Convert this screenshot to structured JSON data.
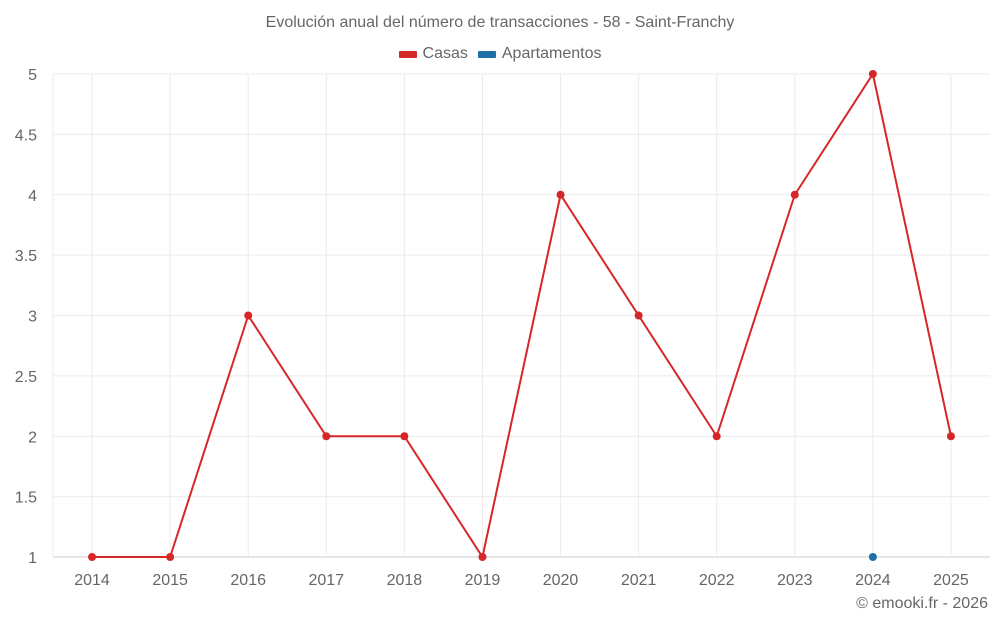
{
  "chart_data": {
    "type": "line",
    "title": "Evolución anual del número de transacciones - 58 - Saint-Franchy",
    "xlabel": "",
    "ylabel": "",
    "categories": [
      "2014",
      "2015",
      "2016",
      "2017",
      "2018",
      "2019",
      "2020",
      "2021",
      "2022",
      "2023",
      "2024",
      "2025"
    ],
    "series": [
      {
        "name": "Casas",
        "color": "#d62728",
        "values": [
          1,
          1,
          3,
          2,
          2,
          1,
          4,
          3,
          2,
          4,
          5,
          2
        ]
      },
      {
        "name": "Apartamentos",
        "color": "#1f6fa8",
        "values": [
          null,
          null,
          null,
          null,
          null,
          null,
          null,
          null,
          null,
          null,
          1,
          null
        ]
      }
    ],
    "ylim": [
      1,
      5
    ],
    "yticks": [
      "1",
      "1.5",
      "2",
      "2.5",
      "3",
      "3.5",
      "4",
      "4.5",
      "5"
    ],
    "grid": true,
    "legend_position": "top"
  },
  "legend": {
    "items": [
      {
        "label": "Casas",
        "color": "#d62728"
      },
      {
        "label": "Apartamentos",
        "color": "#1f6fa8"
      }
    ]
  },
  "credit": "© emooki.fr - 2026"
}
